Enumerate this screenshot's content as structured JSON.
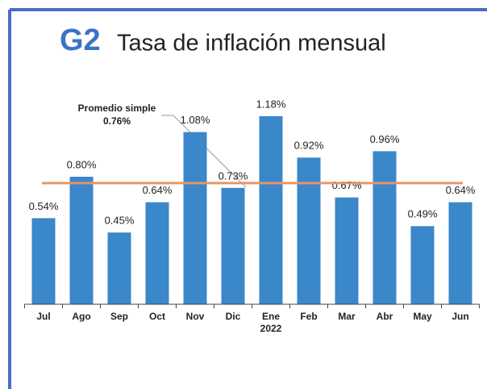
{
  "chart_data": {
    "type": "bar",
    "title_badge": "G2",
    "title": "Tasa de inflación mensual",
    "categories": [
      "Jul",
      "Ago",
      "Sep",
      "Oct",
      "Nov",
      "Dic",
      "Ene",
      "Feb",
      "Mar",
      "Abr",
      "May",
      "Jun"
    ],
    "values": [
      0.54,
      0.8,
      0.45,
      0.64,
      1.08,
      0.73,
      1.18,
      0.92,
      0.67,
      0.96,
      0.49,
      0.64
    ],
    "value_labels": [
      "0.54%",
      "0.80%",
      "0.45%",
      "0.64%",
      "1.08%",
      "0.73%",
      "1.18%",
      "0.92%",
      "0.67%",
      "0.96%",
      "0.49%",
      "0.64%"
    ],
    "color": "#3a87c9",
    "ylim": [
      0,
      1.3
    ],
    "annotations": [
      "2022"
    ],
    "average_line": {
      "label": "Promedio simple",
      "value": 0.76,
      "value_label": "0.76%",
      "color": "#e8956a"
    }
  }
}
